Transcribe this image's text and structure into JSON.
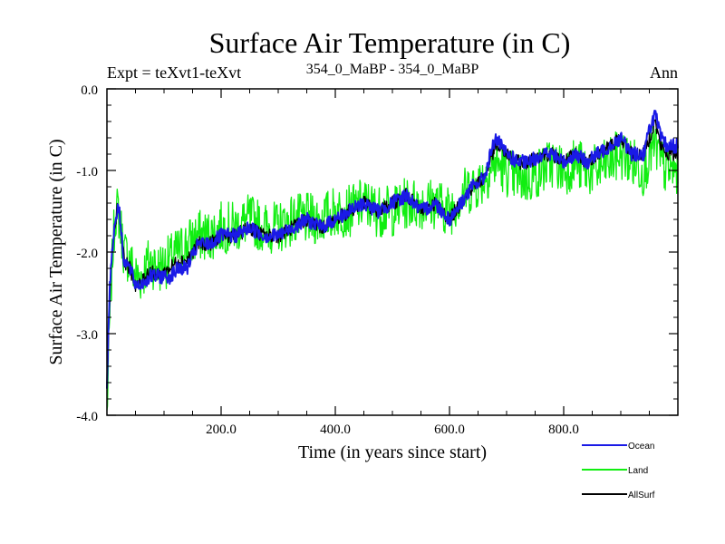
{
  "chart_data": {
    "type": "line",
    "title": "Surface Air Temperature (in C)",
    "subtitle_left": "Expt = teXvt1-teXvt",
    "subtitle_center": "354_0_MaBP - 354_0_MaBP",
    "subtitle_right": "Ann",
    "xlabel": "Time (in years since start)",
    "ylabel": "Surface Air Temperature (in C)",
    "xlim": [
      0,
      1000
    ],
    "ylim": [
      -4.0,
      0.0
    ],
    "x_ticks": [
      200,
      400,
      600,
      800
    ],
    "x_tick_labels": [
      "200.0",
      "400.0",
      "600.0",
      "800.0"
    ],
    "y_ticks": [
      0,
      -1,
      -2,
      -3,
      -4
    ],
    "y_tick_labels": [
      "0.0",
      "-1.0",
      "-2.0",
      "-3.0",
      "-4.0"
    ],
    "grid": false,
    "legend_position": "bottom-right",
    "series": [
      {
        "name": "Ocean",
        "color": "#1a1ae6",
        "x": [
          0,
          5,
          10,
          15,
          20,
          30,
          40,
          50,
          60,
          75,
          90,
          110,
          125,
          140,
          160,
          180,
          200,
          225,
          250,
          275,
          300,
          325,
          350,
          375,
          400,
          425,
          450,
          475,
          500,
          525,
          550,
          575,
          600,
          620,
          640,
          660,
          680,
          700,
          720,
          740,
          760,
          780,
          800,
          820,
          840,
          860,
          880,
          900,
          920,
          940,
          950,
          960,
          970,
          980,
          1000
        ],
        "values": [
          -3.6,
          -2.4,
          -1.9,
          -1.6,
          -1.4,
          -2.1,
          -2.2,
          -2.4,
          -2.4,
          -2.3,
          -2.3,
          -2.3,
          -2.2,
          -2.2,
          -1.9,
          -1.9,
          -1.8,
          -1.8,
          -1.7,
          -1.8,
          -1.8,
          -1.7,
          -1.6,
          -1.7,
          -1.6,
          -1.5,
          -1.4,
          -1.5,
          -1.4,
          -1.3,
          -1.5,
          -1.4,
          -1.6,
          -1.4,
          -1.2,
          -1.1,
          -0.6,
          -0.8,
          -0.9,
          -0.9,
          -0.8,
          -0.8,
          -0.9,
          -0.8,
          -0.9,
          -0.8,
          -0.7,
          -0.6,
          -0.8,
          -0.8,
          -0.5,
          -0.3,
          -0.6,
          -0.7,
          -0.7
        ]
      },
      {
        "name": "Land",
        "color": "#11ee11",
        "x": [
          0,
          5,
          10,
          15,
          20,
          30,
          40,
          50,
          60,
          75,
          90,
          110,
          125,
          140,
          160,
          180,
          200,
          225,
          250,
          275,
          300,
          325,
          350,
          375,
          400,
          425,
          450,
          475,
          500,
          525,
          550,
          575,
          600,
          620,
          640,
          660,
          680,
          700,
          720,
          740,
          760,
          780,
          800,
          820,
          840,
          860,
          880,
          900,
          920,
          940,
          950,
          960,
          970,
          980,
          1000
        ],
        "values": [
          -4.0,
          -2.8,
          -2.0,
          -1.5,
          -1.5,
          -2.0,
          -2.1,
          -2.3,
          -2.3,
          -2.1,
          -2.2,
          -2.1,
          -2.0,
          -1.9,
          -1.8,
          -1.8,
          -1.7,
          -1.7,
          -1.6,
          -1.7,
          -1.7,
          -1.6,
          -1.6,
          -1.6,
          -1.5,
          -1.5,
          -1.4,
          -1.5,
          -1.5,
          -1.4,
          -1.4,
          -1.4,
          -1.5,
          -1.3,
          -1.2,
          -1.1,
          -0.9,
          -1.0,
          -1.1,
          -1.1,
          -1.0,
          -0.9,
          -1.0,
          -0.9,
          -1.0,
          -1.0,
          -0.9,
          -0.8,
          -0.9,
          -1.0,
          -0.8,
          -0.7,
          -0.9,
          -1.0,
          -1.0
        ]
      },
      {
        "name": "AllSurf",
        "color": "#000000",
        "x": [
          0,
          5,
          10,
          15,
          20,
          30,
          40,
          50,
          60,
          75,
          90,
          110,
          125,
          140,
          160,
          180,
          200,
          225,
          250,
          275,
          300,
          325,
          350,
          375,
          400,
          425,
          450,
          475,
          500,
          525,
          550,
          575,
          600,
          620,
          640,
          660,
          680,
          700,
          720,
          740,
          760,
          780,
          800,
          820,
          840,
          860,
          880,
          900,
          920,
          940,
          950,
          960,
          970,
          980,
          1000
        ],
        "values": [
          -3.7,
          -2.5,
          -1.9,
          -1.6,
          -1.4,
          -2.1,
          -2.2,
          -2.4,
          -2.4,
          -2.2,
          -2.3,
          -2.2,
          -2.1,
          -2.1,
          -1.9,
          -1.9,
          -1.8,
          -1.8,
          -1.7,
          -1.8,
          -1.8,
          -1.7,
          -1.6,
          -1.7,
          -1.6,
          -1.5,
          -1.4,
          -1.5,
          -1.4,
          -1.3,
          -1.5,
          -1.4,
          -1.6,
          -1.4,
          -1.2,
          -1.1,
          -0.7,
          -0.8,
          -0.9,
          -0.9,
          -0.8,
          -0.8,
          -0.9,
          -0.8,
          -0.9,
          -0.8,
          -0.7,
          -0.6,
          -0.8,
          -0.8,
          -0.6,
          -0.4,
          -0.7,
          -0.8,
          -0.8
        ]
      }
    ]
  }
}
